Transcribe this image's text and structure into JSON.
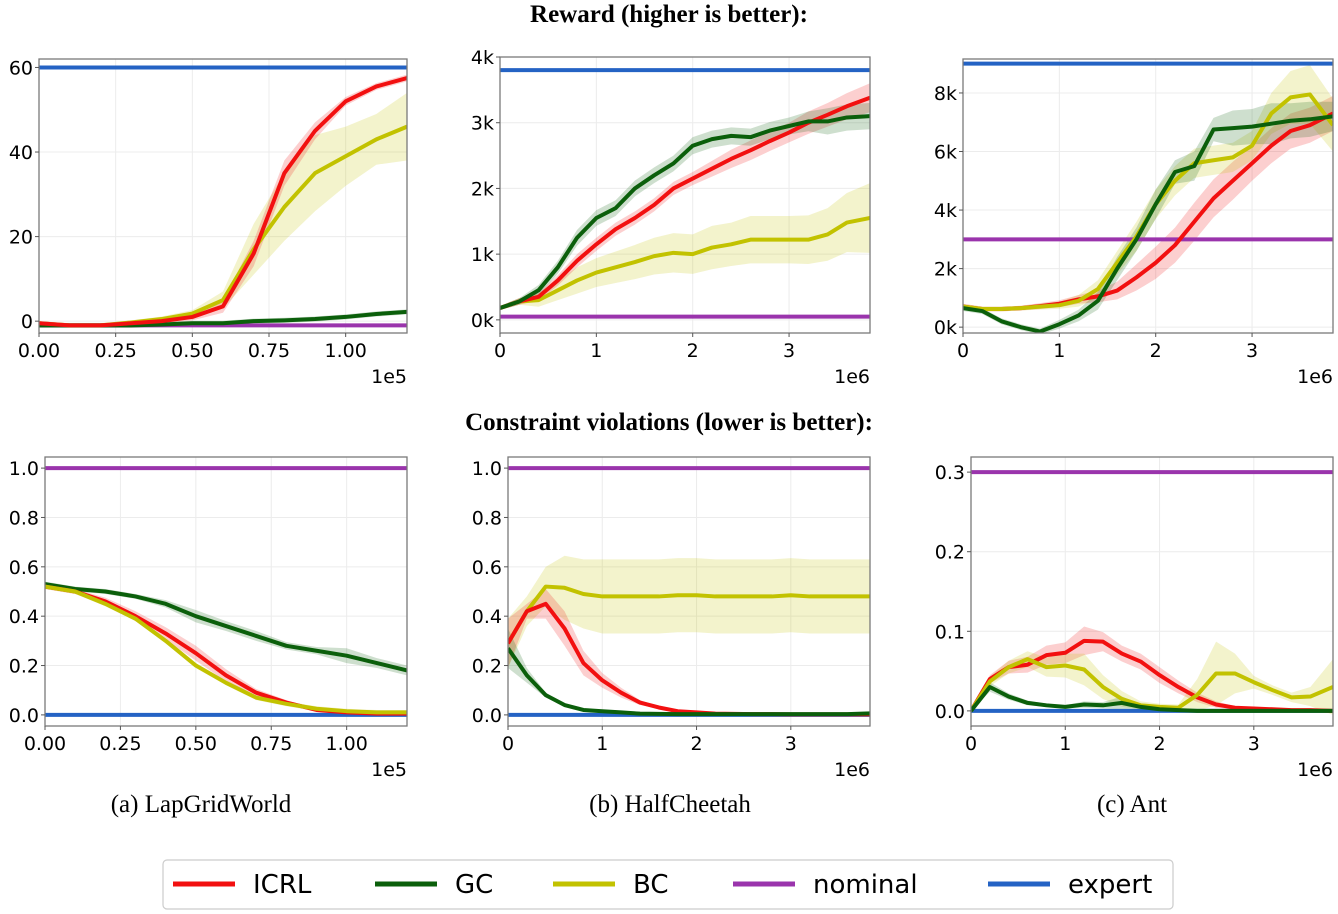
{
  "titles": {
    "reward": "Reward (higher is better):",
    "constraint": "Constraint violations (lower is better):"
  },
  "captions": [
    "(a)  LapGridWorld",
    "(b)  HalfCheetah",
    "(c)  Ant"
  ],
  "legend": [
    {
      "name": "ICRL",
      "color": "#f21010"
    },
    {
      "name": "GC",
      "color": "#0b5f0b"
    },
    {
      "name": "BC",
      "color": "#c2c200"
    },
    {
      "name": "nominal",
      "color": "#9a34ac"
    },
    {
      "name": "expert",
      "color": "#2463c4"
    }
  ],
  "chart_data": [
    {
      "type": "line",
      "panel": "reward-lapgridworld",
      "xlim": [
        0,
        1.2
      ],
      "ylim": [
        -2.8,
        62
      ],
      "xticks": [
        0,
        0.25,
        0.5,
        0.75,
        1.0
      ],
      "xticklabels": [
        "0.00",
        "0.25",
        "0.50",
        "0.75",
        "1.00"
      ],
      "yticks": [
        0,
        20,
        40,
        60
      ],
      "yticklabels": [
        "0",
        "20",
        "40",
        "60"
      ],
      "x_offset_label": "1e5",
      "grid": true,
      "x": [
        0,
        0.1,
        0.2,
        0.3,
        0.4,
        0.5,
        0.6,
        0.7,
        0.8,
        0.9,
        1.0,
        1.1,
        1.2
      ],
      "series": [
        {
          "name": "BC",
          "values": [
            -0.5,
            -1,
            -1,
            -0.3,
            0.5,
            1.8,
            5,
            17,
            27,
            35,
            39,
            43,
            46
          ],
          "band": [
            0.5,
            0.5,
            0.5,
            0.5,
            0.6,
            0.8,
            2,
            6,
            8,
            9,
            7,
            6,
            8
          ]
        },
        {
          "name": "GC",
          "values": [
            -1,
            -1,
            -1,
            -1,
            -0.8,
            -0.5,
            -0.5,
            0,
            0.2,
            0.5,
            1,
            1.7,
            2.2
          ],
          "band": 0.6
        },
        {
          "name": "ICRL",
          "values": [
            -0.5,
            -1,
            -1,
            -0.5,
            0,
            1,
            3.5,
            16,
            35,
            45,
            52,
            55.5,
            57.5
          ],
          "band": [
            0.5,
            0.5,
            0.5,
            0.5,
            0.5,
            0.8,
            1.5,
            3,
            3,
            2,
            1,
            0.8,
            0.8
          ]
        }
      ],
      "hlines": [
        {
          "name": "nominal",
          "value": -1
        },
        {
          "name": "expert",
          "value": 60
        }
      ]
    },
    {
      "type": "line",
      "panel": "reward-halfcheetah",
      "xlim": [
        0,
        3.84
      ],
      "ylim": [
        -0.2,
        4.0
      ],
      "xticks": [
        0,
        1,
        2,
        3
      ],
      "xticklabels": [
        "0",
        "1",
        "2",
        "3"
      ],
      "yticks": [
        0,
        1,
        2,
        3,
        4
      ],
      "yticklabels": [
        "0k",
        "1k",
        "2k",
        "3k",
        "4k"
      ],
      "x_offset_label": "1e6",
      "grid": true,
      "x": [
        0,
        0.2,
        0.4,
        0.6,
        0.8,
        1.0,
        1.2,
        1.4,
        1.6,
        1.8,
        2.0,
        2.2,
        2.4,
        2.6,
        2.8,
        3.0,
        3.2,
        3.4,
        3.6,
        3.84
      ],
      "series": [
        {
          "name": "BC",
          "values": [
            0.18,
            0.28,
            0.3,
            0.45,
            0.6,
            0.72,
            0.8,
            0.88,
            0.97,
            1.02,
            1.0,
            1.1,
            1.15,
            1.22,
            1.22,
            1.22,
            1.22,
            1.3,
            1.48,
            1.55
          ],
          "band": [
            0.03,
            0.05,
            0.1,
            0.15,
            0.2,
            0.22,
            0.24,
            0.26,
            0.28,
            0.3,
            0.3,
            0.33,
            0.33,
            0.36,
            0.36,
            0.36,
            0.37,
            0.4,
            0.45,
            0.53
          ]
        },
        {
          "name": "ICRL",
          "values": [
            0.18,
            0.28,
            0.35,
            0.6,
            0.9,
            1.15,
            1.38,
            1.55,
            1.75,
            2.0,
            2.15,
            2.3,
            2.45,
            2.58,
            2.72,
            2.85,
            3.0,
            3.12,
            3.25,
            3.38
          ],
          "band": [
            0.03,
            0.05,
            0.06,
            0.08,
            0.1,
            0.1,
            0.1,
            0.1,
            0.1,
            0.1,
            0.1,
            0.12,
            0.14,
            0.15,
            0.15,
            0.15,
            0.17,
            0.18,
            0.2,
            0.22
          ]
        },
        {
          "name": "GC",
          "values": [
            0.18,
            0.28,
            0.45,
            0.8,
            1.25,
            1.55,
            1.7,
            2.0,
            2.2,
            2.38,
            2.65,
            2.75,
            2.8,
            2.78,
            2.88,
            2.95,
            3.02,
            3.02,
            3.08,
            3.1
          ],
          "band": [
            0.03,
            0.05,
            0.08,
            0.1,
            0.12,
            0.12,
            0.12,
            0.12,
            0.12,
            0.12,
            0.13,
            0.13,
            0.13,
            0.13,
            0.13,
            0.13,
            0.15,
            0.2,
            0.2,
            0.2
          ]
        }
      ],
      "hlines": [
        {
          "name": "nominal",
          "value": 0.05
        },
        {
          "name": "expert",
          "value": 3.8
        }
      ]
    },
    {
      "type": "line",
      "panel": "reward-ant",
      "xlim": [
        0,
        3.84
      ],
      "ylim": [
        -0.2,
        9.16
      ],
      "xticks": [
        0,
        1,
        2,
        3
      ],
      "xticklabels": [
        "0",
        "1",
        "2",
        "3"
      ],
      "yticks": [
        0,
        2,
        4,
        6,
        8
      ],
      "yticklabels": [
        "0k",
        "2k",
        "4k",
        "6k",
        "8k"
      ],
      "x_offset_label": "1e6",
      "grid": true,
      "x": [
        0,
        0.2,
        0.4,
        0.6,
        0.8,
        1.0,
        1.2,
        1.4,
        1.6,
        1.8,
        2.0,
        2.2,
        2.4,
        2.6,
        2.8,
        3.0,
        3.2,
        3.4,
        3.6,
        3.84
      ],
      "series": [
        {
          "name": "ICRL",
          "values": [
            0.7,
            0.62,
            0.62,
            0.65,
            0.72,
            0.8,
            0.95,
            1.05,
            1.25,
            1.7,
            2.2,
            2.8,
            3.6,
            4.4,
            5.0,
            5.6,
            6.2,
            6.7,
            6.9,
            7.3
          ],
          "band": [
            0.1,
            0.08,
            0.08,
            0.08,
            0.1,
            0.12,
            0.15,
            0.2,
            0.3,
            0.45,
            0.55,
            0.6,
            0.65,
            0.65,
            0.65,
            0.6,
            0.6,
            0.6,
            0.6,
            0.6
          ]
        },
        {
          "name": "BC",
          "values": [
            0.7,
            0.62,
            0.62,
            0.65,
            0.7,
            0.75,
            0.9,
            1.3,
            2.2,
            3.1,
            4.2,
            5.0,
            5.6,
            5.7,
            5.8,
            6.2,
            7.3,
            7.85,
            7.95,
            6.9
          ],
          "band": [
            0.1,
            0.08,
            0.08,
            0.08,
            0.1,
            0.12,
            0.2,
            0.3,
            0.4,
            0.5,
            0.5,
            0.5,
            0.5,
            0.5,
            0.5,
            0.5,
            0.7,
            0.9,
            1.0,
            0.9
          ]
        },
        {
          "name": "GC",
          "values": [
            0.65,
            0.55,
            0.2,
            0,
            -0.15,
            0.1,
            0.4,
            0.9,
            2.0,
            3.0,
            4.2,
            5.3,
            5.5,
            6.75,
            6.8,
            6.85,
            6.95,
            7.05,
            7.1,
            7.2
          ],
          "band": [
            0.1,
            0.1,
            0.1,
            0.1,
            0.1,
            0.15,
            0.2,
            0.3,
            0.4,
            0.4,
            0.5,
            0.4,
            0.5,
            0.4,
            0.6,
            0.6,
            0.7,
            0.6,
            0.6,
            0.5
          ]
        }
      ],
      "hlines": [
        {
          "name": "nominal",
          "value": 3.0
        },
        {
          "name": "expert",
          "value": 9.0
        }
      ]
    },
    {
      "type": "line",
      "panel": "constraint-lapgridworld",
      "xlim": [
        0,
        1.2
      ],
      "ylim": [
        -0.045,
        1.045
      ],
      "xticks": [
        0,
        0.25,
        0.5,
        0.75,
        1.0
      ],
      "xticklabels": [
        "0.00",
        "0.25",
        "0.50",
        "0.75",
        "1.00"
      ],
      "yticks": [
        0,
        0.2,
        0.4,
        0.6,
        0.8,
        1.0
      ],
      "yticklabels": [
        "0.0",
        "0.2",
        "0.4",
        "0.6",
        "0.8",
        "1.0"
      ],
      "x_offset_label": "1e5",
      "grid": true,
      "x": [
        0,
        0.1,
        0.2,
        0.3,
        0.4,
        0.5,
        0.6,
        0.7,
        0.8,
        0.9,
        1.0,
        1.1,
        1.2
      ],
      "series": [
        {
          "name": "GC",
          "values": [
            0.53,
            0.51,
            0.5,
            0.48,
            0.45,
            0.4,
            0.36,
            0.32,
            0.28,
            0.26,
            0.24,
            0.21,
            0.18
          ],
          "band": [
            0.01,
            0.01,
            0.01,
            0.01,
            0.015,
            0.025,
            0.02,
            0.02,
            0.015,
            0.015,
            0.03,
            0.02,
            0.02
          ]
        },
        {
          "name": "ICRL",
          "values": [
            0.52,
            0.5,
            0.46,
            0.4,
            0.33,
            0.25,
            0.16,
            0.09,
            0.05,
            0.02,
            0.01,
            0.005,
            0.005
          ],
          "band": [
            0.01,
            0.01,
            0.015,
            0.02,
            0.025,
            0.03,
            0.025,
            0.015,
            0.01,
            0.005,
            0.005,
            0.005,
            0.005
          ]
        },
        {
          "name": "BC",
          "values": [
            0.52,
            0.5,
            0.45,
            0.39,
            0.3,
            0.2,
            0.13,
            0.07,
            0.045,
            0.025,
            0.015,
            0.01,
            0.01
          ],
          "band": 0.01
        }
      ],
      "hlines": [
        {
          "name": "nominal",
          "value": 1.0
        },
        {
          "name": "expert",
          "value": 0.0
        }
      ]
    },
    {
      "type": "line",
      "panel": "constraint-halfcheetah",
      "xlim": [
        0,
        3.84
      ],
      "ylim": [
        -0.045,
        1.045
      ],
      "xticks": [
        0,
        1,
        2,
        3
      ],
      "xticklabels": [
        "0",
        "1",
        "2",
        "3"
      ],
      "yticks": [
        0,
        0.2,
        0.4,
        0.6,
        0.8,
        1.0
      ],
      "yticklabels": [
        "0.0",
        "0.2",
        "0.4",
        "0.6",
        "0.8",
        "1.0"
      ],
      "x_offset_label": "1e6",
      "grid": true,
      "x": [
        0,
        0.2,
        0.4,
        0.6,
        0.8,
        1.0,
        1.2,
        1.4,
        1.6,
        1.8,
        2.0,
        2.2,
        2.4,
        2.6,
        2.8,
        3.0,
        3.2,
        3.4,
        3.6,
        3.84
      ],
      "series": [
        {
          "name": "BC",
          "values": [
            0.29,
            0.42,
            0.52,
            0.515,
            0.49,
            0.48,
            0.48,
            0.48,
            0.48,
            0.485,
            0.485,
            0.48,
            0.48,
            0.48,
            0.48,
            0.485,
            0.48,
            0.48,
            0.48,
            0.48
          ],
          "band": [
            0.1,
            0.06,
            0.08,
            0.13,
            0.14,
            0.15,
            0.15,
            0.15,
            0.15,
            0.15,
            0.15,
            0.15,
            0.15,
            0.15,
            0.15,
            0.15,
            0.15,
            0.15,
            0.15,
            0.15
          ]
        },
        {
          "name": "ICRL",
          "values": [
            0.29,
            0.42,
            0.45,
            0.35,
            0.21,
            0.14,
            0.09,
            0.05,
            0.03,
            0.015,
            0.01,
            0.005,
            0.004,
            0.003,
            0.003,
            0.002,
            0.002,
            0.002,
            0.002,
            0.002
          ],
          "band": [
            0.1,
            0.03,
            0.06,
            0.07,
            0.05,
            0.03,
            0.02,
            0.01,
            0.005,
            0.005,
            0.005,
            0.003,
            0.003,
            0.003,
            0.003,
            0.002,
            0.002,
            0.002,
            0.002,
            0.002
          ]
        },
        {
          "name": "GC",
          "values": [
            0.27,
            0.16,
            0.08,
            0.04,
            0.02,
            0.015,
            0.01,
            0.005,
            0.004,
            0.003,
            0.003,
            0.003,
            0.003,
            0.003,
            0.003,
            0.003,
            0.003,
            0.003,
            0.003,
            0.006
          ],
          "band": [
            0.08,
            0.03,
            0.01,
            0.005,
            0.004,
            0.003,
            0.003,
            0.003,
            0.003,
            0.003,
            0.003,
            0.003,
            0.003,
            0.003,
            0.003,
            0.003,
            0.003,
            0.003,
            0.003,
            0.003
          ]
        }
      ],
      "hlines": [
        {
          "name": "nominal",
          "value": 1.0
        },
        {
          "name": "expert",
          "value": 0.0
        }
      ]
    },
    {
      "type": "line",
      "panel": "constraint-ant",
      "xlim": [
        0,
        3.84
      ],
      "ylim": [
        -0.019,
        0.319
      ],
      "xticks": [
        0,
        1,
        2,
        3
      ],
      "xticklabels": [
        "0",
        "1",
        "2",
        "3"
      ],
      "yticks": [
        0,
        0.1,
        0.2,
        0.3
      ],
      "yticklabels": [
        "0.0",
        "0.1",
        "0.2",
        "0.3"
      ],
      "x_offset_label": "1e6",
      "grid": true,
      "x": [
        0,
        0.2,
        0.4,
        0.6,
        0.8,
        1.0,
        1.2,
        1.4,
        1.6,
        1.8,
        2.0,
        2.2,
        2.4,
        2.6,
        2.8,
        3.0,
        3.2,
        3.4,
        3.6,
        3.84
      ],
      "series": [
        {
          "name": "ICRL",
          "values": [
            0,
            0.04,
            0.055,
            0.058,
            0.07,
            0.073,
            0.088,
            0.087,
            0.072,
            0.062,
            0.045,
            0.03,
            0.017,
            0.008,
            0.004,
            0.003,
            0.002,
            0.001,
            0.001,
            0.0
          ],
          "band": [
            0,
            0.005,
            0.008,
            0.01,
            0.012,
            0.013,
            0.018,
            0.012,
            0.01,
            0.01,
            0.01,
            0.008,
            0.006,
            0.004,
            0.002,
            0.002,
            0.001,
            0.001,
            0.001,
            0.001
          ]
        },
        {
          "name": "BC",
          "values": [
            0,
            0.037,
            0.055,
            0.065,
            0.055,
            0.057,
            0.052,
            0.03,
            0.015,
            0.007,
            0.005,
            0.004,
            0.02,
            0.047,
            0.047,
            0.036,
            0.026,
            0.017,
            0.018,
            0.03
          ],
          "band": [
            0,
            0.006,
            0.008,
            0.01,
            0.012,
            0.015,
            0.02,
            0.015,
            0.01,
            0.005,
            0.004,
            0.004,
            0.02,
            0.04,
            0.025,
            0.008,
            0.006,
            0.006,
            0.012,
            0.035
          ]
        },
        {
          "name": "GC",
          "values": [
            0,
            0.03,
            0.018,
            0.01,
            0.007,
            0.005,
            0.008,
            0.007,
            0.01,
            0.005,
            0.002,
            0.001,
            0,
            0,
            0,
            0,
            0,
            0,
            0,
            0
          ],
          "band": [
            0,
            0.006,
            0.004,
            0.003,
            0.002,
            0.002,
            0.004,
            0.004,
            0.008,
            0.003,
            0.001,
            0.001,
            0,
            0,
            0,
            0,
            0,
            0,
            0,
            0
          ]
        }
      ],
      "hlines": [
        {
          "name": "nominal",
          "value": 0.3
        },
        {
          "name": "expert",
          "value": 0.0
        }
      ]
    }
  ]
}
